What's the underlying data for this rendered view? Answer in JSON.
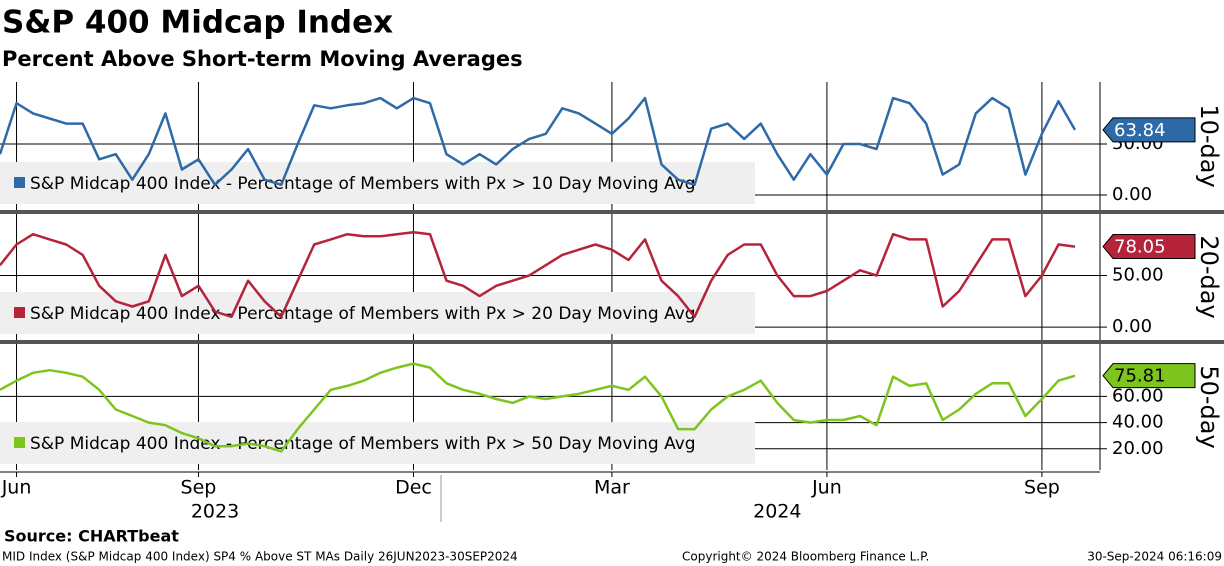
{
  "title": "S&P 400 Midcap Index",
  "subtitle": "Percent Above Short-term Moving Averages",
  "source": "Source: CHARTbeat",
  "footer_left": "MID Index (S&P Midcap 400 Index) SP4 % Above ST MAs  Daily 26JUN2023-30SEP2024",
  "footer_center": "Copyright© 2024 Bloomberg Finance L.P.",
  "footer_right": "30-Sep-2024 06:16:09",
  "chart_data": [
    {
      "type": "line",
      "y_label": "10-day",
      "ylim": [
        -14.7,
        110.8
      ],
      "yticks": [
        {
          "value": 0,
          "label": "0.00"
        },
        {
          "value": 50,
          "label": "50.00"
        }
      ],
      "grid": true,
      "series": [
        {
          "name": "S&P Midcap 400 Index - Percentage of Members with Px > 10 Day Moving Avg",
          "color": "#2e6aa8",
          "values": [
            40,
            90,
            80,
            75,
            70,
            70,
            35,
            40,
            15,
            40,
            80,
            25,
            35,
            10,
            25,
            45,
            15,
            10,
            50,
            88,
            85,
            88,
            90,
            95,
            85,
            95,
            90,
            40,
            30,
            40,
            30,
            45,
            55,
            60,
            85,
            80,
            70,
            60,
            75,
            95,
            30,
            15,
            10,
            65,
            70,
            55,
            70,
            40,
            15,
            40,
            20,
            50,
            50,
            45,
            95,
            90,
            70,
            20,
            30,
            80,
            95,
            85,
            20,
            60,
            92,
            63.84
          ]
        }
      ]
    },
    {
      "type": "line",
      "y_label": "20-day",
      "ylim": [
        -12.5,
        109.6
      ],
      "yticks": [
        {
          "value": 0,
          "label": "0.00"
        },
        {
          "value": 50,
          "label": "50.00"
        }
      ],
      "grid": true,
      "series": [
        {
          "name": "S&P Midcap 400 Index - Percentage of Members with Px > 20 Day Moving Avg",
          "color": "#b5243a",
          "values": [
            60,
            80,
            90,
            85,
            80,
            70,
            40,
            25,
            20,
            25,
            70,
            30,
            40,
            15,
            10,
            45,
            25,
            10,
            45,
            80,
            85,
            90,
            88,
            88,
            90,
            92,
            90,
            45,
            40,
            30,
            40,
            45,
            50,
            60,
            70,
            75,
            80,
            75,
            65,
            85,
            45,
            30,
            10,
            45,
            70,
            80,
            80,
            50,
            30,
            30,
            35,
            45,
            55,
            50,
            90,
            85,
            85,
            20,
            35,
            60,
            85,
            85,
            30,
            50,
            80,
            78.05
          ]
        }
      ]
    },
    {
      "type": "line",
      "y_label": "50-day",
      "ylim": [
        3.8,
        100
      ],
      "yticks": [
        {
          "value": 20,
          "label": "20.00"
        },
        {
          "value": 40,
          "label": "40.00"
        },
        {
          "value": 60,
          "label": "60.00"
        }
      ],
      "grid": true,
      "series": [
        {
          "name": "S&P Midcap 400 Index - Percentage of Members with Px > 50 Day Moving Avg",
          "color": "#7ec41e",
          "values": [
            65,
            72,
            78,
            80,
            78,
            75,
            65,
            50,
            45,
            40,
            38,
            32,
            28,
            22,
            22,
            24,
            22,
            18,
            35,
            50,
            65,
            68,
            72,
            78,
            82,
            85,
            82,
            70,
            65,
            62,
            58,
            55,
            60,
            58,
            60,
            62,
            65,
            68,
            65,
            75,
            60,
            35,
            35,
            50,
            60,
            65,
            72,
            55,
            42,
            40,
            42,
            42,
            45,
            38,
            75,
            68,
            70,
            42,
            50,
            62,
            70,
            70,
            45,
            58,
            72,
            75.81
          ]
        }
      ],
      "categories": [
        null,
        "Jun",
        null,
        null,
        null,
        null,
        null,
        null,
        null,
        null,
        null,
        null,
        "Sep",
        null,
        null,
        null,
        null,
        null,
        null,
        null,
        null,
        null,
        null,
        null,
        null,
        "Dec",
        null,
        null,
        null,
        null,
        null,
        null,
        null,
        null,
        null,
        null,
        null,
        "Mar",
        null,
        null,
        null,
        null,
        null,
        null,
        null,
        null,
        null,
        null,
        null,
        null,
        "Jun",
        null,
        null,
        null,
        null,
        null,
        null,
        null,
        null,
        null,
        null,
        null,
        null,
        "Sep",
        null,
        null
      ],
      "year_labels": [
        null,
        null,
        null,
        null,
        null,
        null,
        null,
        null,
        null,
        null,
        null,
        null,
        null,
        "2023",
        null,
        null,
        null,
        null,
        null,
        null,
        null,
        null,
        null,
        null,
        null,
        null,
        null,
        null,
        null,
        null,
        null,
        null,
        null,
        null,
        null,
        null,
        null,
        null,
        null,
        null,
        null,
        null,
        null,
        null,
        null,
        null,
        null,
        "2024",
        null,
        null,
        null,
        null,
        null,
        null,
        null,
        null,
        null,
        null,
        null,
        null,
        null,
        null,
        null,
        null,
        null,
        null
      ]
    }
  ]
}
